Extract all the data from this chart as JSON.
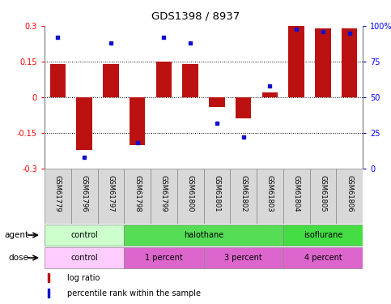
{
  "title": "GDS1398 / 8937",
  "samples": [
    "GSM61779",
    "GSM61796",
    "GSM61797",
    "GSM61798",
    "GSM61799",
    "GSM61800",
    "GSM61801",
    "GSM61802",
    "GSM61803",
    "GSM61804",
    "GSM61805",
    "GSM61806"
  ],
  "log_ratio": [
    0.14,
    -0.22,
    0.14,
    -0.2,
    0.15,
    0.14,
    -0.04,
    -0.09,
    0.02,
    0.3,
    0.29,
    0.29
  ],
  "percentile": [
    92,
    8,
    88,
    18,
    92,
    88,
    32,
    22,
    58,
    98,
    96,
    95
  ],
  "ylim": [
    -0.3,
    0.3
  ],
  "yticks_left": [
    -0.3,
    -0.15,
    0,
    0.15,
    0.3
  ],
  "yticks_right": [
    0,
    25,
    50,
    75,
    100
  ],
  "bar_color": "#bb1111",
  "dot_color": "#1111cc",
  "agent_colors": {
    "control": "#ccffcc",
    "halothane": "#55dd55",
    "isoflurane": "#44dd44"
  },
  "dose_colors": {
    "control": "#ffccff",
    "1 percent": "#dd66cc",
    "3 percent": "#dd66cc",
    "4 percent": "#dd66cc"
  },
  "agent_groups": [
    {
      "label": "control",
      "start": 0,
      "end": 3
    },
    {
      "label": "halothane",
      "start": 3,
      "end": 9
    },
    {
      "label": "isoflurane",
      "start": 9,
      "end": 12
    }
  ],
  "dose_groups": [
    {
      "label": "control",
      "start": 0,
      "end": 3
    },
    {
      "label": "1 percent",
      "start": 3,
      "end": 6
    },
    {
      "label": "3 percent",
      "start": 6,
      "end": 9
    },
    {
      "label": "4 percent",
      "start": 9,
      "end": 12
    }
  ]
}
